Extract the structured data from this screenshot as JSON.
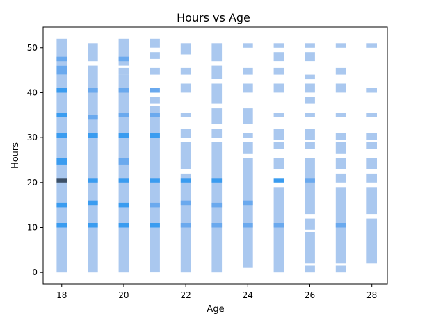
{
  "chart_data": {
    "type": "heatmap",
    "title": "Hours vs Age",
    "xlabel": "Age",
    "ylabel": "Hours",
    "xlim": [
      17.4,
      28.5
    ],
    "ylim": [
      -2.6,
      54.6
    ],
    "xticks": [
      18,
      20,
      22,
      24,
      26,
      28
    ],
    "yticks": [
      0,
      10,
      20,
      30,
      40,
      50
    ],
    "bin_width_x": 0.33,
    "bin_height_y": 1.07,
    "grid": false,
    "legend": "none",
    "colors": {
      "low": "#aac8ef",
      "mid": "#6aa9ee",
      "high": "#3a9cf0",
      "max": "#3c5068",
      "axis": "#000000"
    },
    "columns": [
      {
        "age": 18,
        "cells": [
          [
            0,
            44,
            1
          ],
          [
            44,
            46,
            2
          ],
          [
            46,
            52,
            1
          ],
          [
            10,
            11,
            4
          ],
          [
            14.5,
            15.5,
            4
          ],
          [
            20,
            21,
            6
          ],
          [
            24,
            25.5,
            4
          ],
          [
            30,
            31,
            4
          ],
          [
            34.5,
            35.5,
            3
          ],
          [
            40,
            41,
            3
          ],
          [
            47,
            48,
            2
          ]
        ]
      },
      {
        "age": 19,
        "cells": [
          [
            0,
            46,
            1
          ],
          [
            47,
            51,
            1
          ],
          [
            10,
            11,
            3
          ],
          [
            15,
            16,
            3
          ],
          [
            20,
            21,
            4
          ],
          [
            30,
            31,
            3
          ],
          [
            34,
            35,
            2
          ],
          [
            40,
            41,
            2
          ]
        ]
      },
      {
        "age": 20,
        "cells": [
          [
            0,
            44,
            1
          ],
          [
            44,
            45.5,
            1
          ],
          [
            46,
            52,
            1
          ],
          [
            10,
            11,
            3
          ],
          [
            14.5,
            15.5,
            3
          ],
          [
            20,
            21,
            4
          ],
          [
            24,
            25.5,
            2
          ],
          [
            30,
            31,
            3
          ],
          [
            34.5,
            35.5,
            2
          ],
          [
            40,
            41,
            2
          ],
          [
            47,
            48,
            2
          ]
        ]
      },
      {
        "age": 21,
        "cells": [
          [
            0,
            37,
            1
          ],
          [
            37.5,
            39,
            1
          ],
          [
            44,
            45.5,
            1
          ],
          [
            47.5,
            49,
            1
          ],
          [
            50,
            52,
            1
          ],
          [
            10,
            11,
            3
          ],
          [
            14.5,
            15.5,
            2
          ],
          [
            20,
            21,
            3
          ],
          [
            30,
            31,
            3
          ],
          [
            34.5,
            35.5,
            2
          ],
          [
            40,
            41,
            2
          ]
        ]
      },
      {
        "age": 22,
        "cells": [
          [
            0,
            22,
            1
          ],
          [
            23,
            29,
            1
          ],
          [
            30,
            32,
            1
          ],
          [
            34.5,
            35.5,
            1
          ],
          [
            40,
            42,
            1
          ],
          [
            44,
            45.5,
            1
          ],
          [
            48.5,
            51,
            1
          ],
          [
            10,
            11,
            2
          ],
          [
            15,
            16,
            2
          ],
          [
            20,
            21,
            4
          ]
        ]
      },
      {
        "age": 23,
        "cells": [
          [
            0,
            27,
            1
          ],
          [
            27,
            29,
            1
          ],
          [
            30,
            32,
            1
          ],
          [
            33,
            36.5,
            1
          ],
          [
            37.5,
            42,
            1
          ],
          [
            43,
            46,
            1
          ],
          [
            47,
            51,
            1
          ],
          [
            10,
            11,
            2
          ],
          [
            14.5,
            15.5,
            2
          ],
          [
            20,
            21,
            3
          ]
        ]
      },
      {
        "age": 24,
        "cells": [
          [
            1,
            25.5,
            1
          ],
          [
            26.5,
            29,
            1
          ],
          [
            30,
            31,
            1
          ],
          [
            33,
            36.5,
            1
          ],
          [
            40,
            42,
            1
          ],
          [
            44,
            45.5,
            1
          ],
          [
            50,
            51,
            1
          ],
          [
            10,
            11,
            2
          ],
          [
            15,
            16,
            2
          ]
        ]
      },
      {
        "age": 25,
        "cells": [
          [
            0,
            19,
            1
          ],
          [
            20,
            21,
            3
          ],
          [
            23,
            25.5,
            1
          ],
          [
            27.5,
            29,
            1
          ],
          [
            29.5,
            32,
            1
          ],
          [
            34.5,
            35.5,
            1
          ],
          [
            40,
            42,
            1
          ],
          [
            44,
            45.5,
            1
          ],
          [
            47,
            49,
            1
          ],
          [
            50,
            51,
            1
          ],
          [
            10,
            11,
            2
          ]
        ]
      },
      {
        "age": 26,
        "cells": [
          [
            0,
            1.5,
            1
          ],
          [
            2,
            9,
            1
          ],
          [
            9.5,
            12,
            1
          ],
          [
            13,
            25.5,
            1
          ],
          [
            27.5,
            29,
            1
          ],
          [
            29.5,
            32,
            1
          ],
          [
            34.5,
            35.5,
            1
          ],
          [
            37.5,
            39,
            1
          ],
          [
            40,
            42,
            1
          ],
          [
            43,
            44,
            1
          ],
          [
            47,
            49,
            1
          ],
          [
            50,
            51,
            1
          ],
          [
            20,
            21,
            2
          ]
        ]
      },
      {
        "age": 27,
        "cells": [
          [
            0,
            1.5,
            1
          ],
          [
            2,
            19,
            1
          ],
          [
            20,
            22,
            1
          ],
          [
            23,
            25.5,
            1
          ],
          [
            26.5,
            29,
            1
          ],
          [
            29.5,
            31,
            1
          ],
          [
            34.5,
            35.5,
            1
          ],
          [
            40,
            42,
            1
          ],
          [
            44,
            45.5,
            1
          ],
          [
            50,
            51,
            1
          ],
          [
            10,
            11,
            2
          ]
        ]
      },
      {
        "age": 28,
        "cells": [
          [
            2,
            12,
            1
          ],
          [
            13,
            19,
            1
          ],
          [
            20,
            22,
            1
          ],
          [
            23,
            25.5,
            1
          ],
          [
            27.5,
            29,
            1
          ],
          [
            29.5,
            31,
            1
          ],
          [
            34.5,
            35.5,
            1
          ],
          [
            40,
            41,
            1
          ],
          [
            50,
            51,
            1
          ]
        ]
      }
    ]
  }
}
